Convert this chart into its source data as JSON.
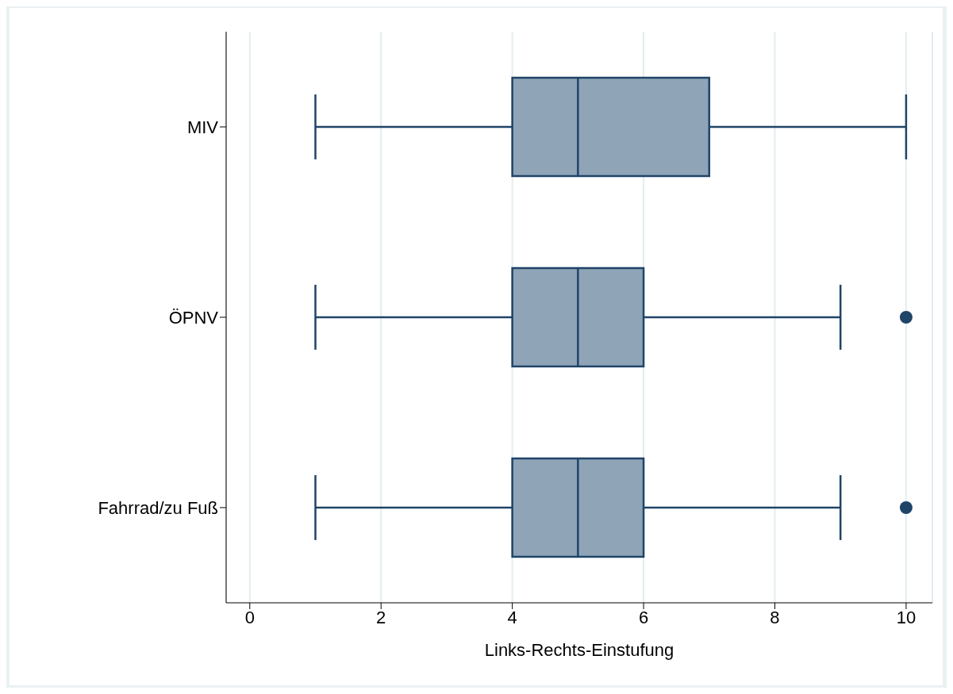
{
  "chart_data": {
    "type": "box",
    "orientation": "horizontal",
    "xlabel": "Links-Rechts-Einstufung",
    "categories": [
      "MIV",
      "ÖPNV",
      "Fahrrad/zu Fuß"
    ],
    "boxes": [
      {
        "low": 1,
        "q1": 4,
        "median": 5,
        "q3": 7,
        "high": 10
      },
      {
        "low": 1,
        "q1": 4,
        "median": 5,
        "q3": 6,
        "high": 9,
        "outliers": [
          10
        ]
      },
      {
        "low": 1,
        "q1": 4,
        "median": 5,
        "q3": 6,
        "high": 9,
        "outliers": [
          10
        ]
      }
    ],
    "color": "#8fa4b7",
    "xlim": [
      -0.36,
      10.4
    ],
    "xticks": [
      0,
      2,
      4,
      6,
      8,
      10
    ],
    "grid": "x"
  }
}
